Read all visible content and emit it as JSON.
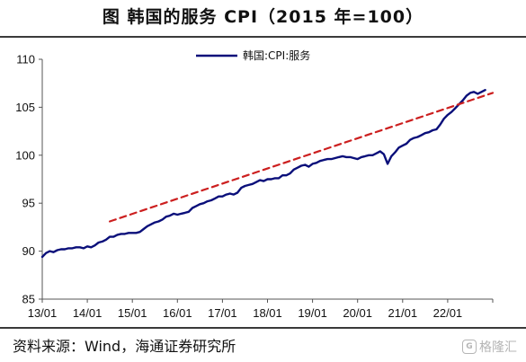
{
  "header": {
    "title": "图 韩国的服务 CPI（2015 年=100）"
  },
  "footer": {
    "source": "资料来源：Wind，海通证券研究所",
    "watermark": "格隆汇"
  },
  "colors": {
    "series": "#0a0f7a",
    "trend": "#cc1f1f",
    "axis": "#555555"
  },
  "chart_data": {
    "type": "line",
    "title": "图 韩国的服务 CPI（2015 年=100）",
    "xlabel": "",
    "ylabel": "",
    "x_ticks": [
      "13/01",
      "14/01",
      "15/01",
      "16/01",
      "17/01",
      "18/01",
      "19/01",
      "20/01",
      "21/01",
      "22/01"
    ],
    "y_ticks": [
      85,
      90,
      95,
      100,
      105,
      110
    ],
    "ylim": [
      85,
      110
    ],
    "xlim": [
      0,
      120
    ],
    "grid": false,
    "legend": {
      "position": "top-center",
      "entries": [
        "韩国:CPI:服务"
      ]
    },
    "series": [
      {
        "name": "韩国:CPI:服务",
        "style": "solid",
        "x": [
          0,
          1,
          2,
          3,
          4,
          5,
          6,
          7,
          8,
          9,
          10,
          11,
          12,
          13,
          14,
          15,
          16,
          17,
          18,
          19,
          20,
          21,
          22,
          23,
          24,
          25,
          26,
          27,
          28,
          29,
          30,
          31,
          32,
          33,
          34,
          35,
          36,
          37,
          38,
          39,
          40,
          41,
          42,
          43,
          44,
          45,
          46,
          47,
          48,
          49,
          50,
          51,
          52,
          53,
          54,
          55,
          56,
          57,
          58,
          59,
          60,
          61,
          62,
          63,
          64,
          65,
          66,
          67,
          68,
          69,
          70,
          71,
          72,
          73,
          74,
          75,
          76,
          77,
          78,
          79,
          80,
          81,
          82,
          83,
          84,
          85,
          86,
          87,
          88,
          89,
          90,
          91,
          92,
          93,
          94,
          95,
          96,
          97,
          98,
          99,
          100,
          101,
          102,
          103,
          104,
          105,
          106,
          107,
          108,
          109,
          110,
          111,
          112,
          113,
          114,
          115,
          116,
          117,
          118
        ],
        "values": [
          89.4,
          89.8,
          90.0,
          89.9,
          90.1,
          90.2,
          90.2,
          90.3,
          90.3,
          90.4,
          90.4,
          90.3,
          90.5,
          90.4,
          90.6,
          90.9,
          91.0,
          91.2,
          91.5,
          91.5,
          91.7,
          91.8,
          91.8,
          91.9,
          91.9,
          91.9,
          92.0,
          92.3,
          92.6,
          92.8,
          93.0,
          93.1,
          93.3,
          93.6,
          93.7,
          93.9,
          93.8,
          93.9,
          94.0,
          94.1,
          94.5,
          94.7,
          94.9,
          95.0,
          95.2,
          95.3,
          95.5,
          95.7,
          95.7,
          95.9,
          96.0,
          95.9,
          96.1,
          96.6,
          96.8,
          96.9,
          97.0,
          97.2,
          97.4,
          97.3,
          97.5,
          97.5,
          97.6,
          97.6,
          97.9,
          97.9,
          98.1,
          98.5,
          98.7,
          98.9,
          99.0,
          98.8,
          99.1,
          99.2,
          99.4,
          99.5,
          99.6,
          99.6,
          99.7,
          99.8,
          99.9,
          99.8,
          99.8,
          99.7,
          99.6,
          99.8,
          99.9,
          100.0,
          100.0,
          100.2,
          100.4,
          100.1,
          99.1,
          99.9,
          100.3,
          100.8,
          101.0,
          101.2,
          101.6,
          101.8,
          101.9,
          102.1,
          102.3,
          102.4,
          102.6,
          102.7,
          103.2,
          103.8,
          104.2,
          104.5,
          104.9,
          105.3,
          105.7,
          106.2,
          106.5,
          106.6,
          106.4,
          106.6,
          106.8
        ],
        "color": "#0a0f7a"
      },
      {
        "name": "",
        "style": "dashed",
        "x": [
          18,
          120
        ],
        "values": [
          93.1,
          106.5
        ],
        "color": "#cc1f1f"
      }
    ]
  }
}
